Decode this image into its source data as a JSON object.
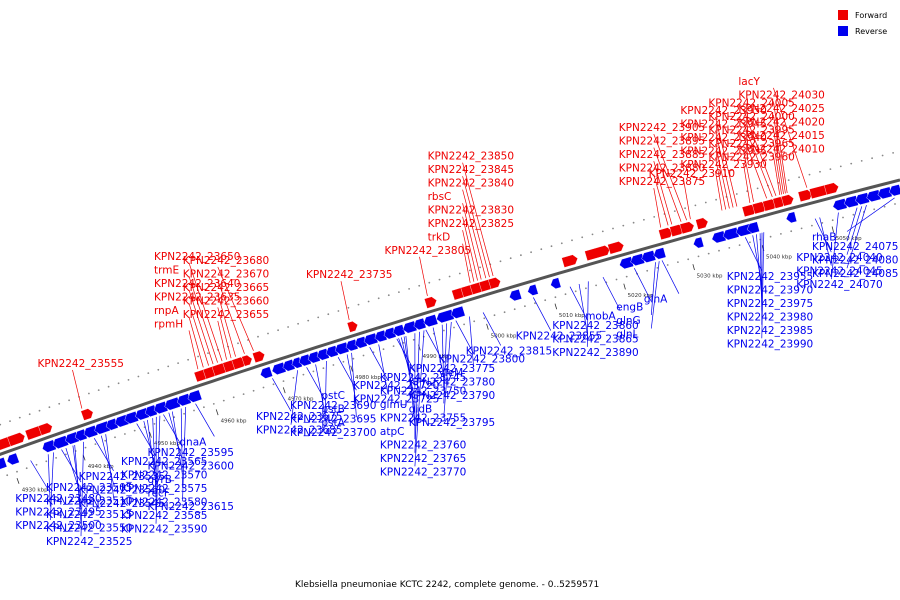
{
  "caption": "Klebsiella pneumoniae KCTC 2242, complete genome. - 0..5259571",
  "legend": [
    {
      "label": "Forward",
      "color": "#ee0000"
    },
    {
      "label": "Reverse",
      "color": "#0000ee"
    }
  ],
  "colors": {
    "forward": "#ee0000",
    "reverse": "#0000ee",
    "backbone": "#555555"
  },
  "scale_labels": [
    "4930 kbp",
    "4940 kbp",
    "4950 kbp",
    "4960 kbp",
    "4970 kbp",
    "4980 kbp",
    "4990 kbp",
    "5000 kbp",
    "5010 kbp",
    "5020 kbp",
    "5030 kbp",
    "5040 kbp",
    "5050 kbp",
    "5060 kbp"
  ],
  "genes_forward": [
    {
      "t": 0.01,
      "w": 0.018
    },
    {
      "t": 0.025,
      "w": 0.014
    },
    {
      "t": 0.045,
      "w": 0.016
    },
    {
      "t": 0.06,
      "w": 0.01
    },
    {
      "t": 0.108,
      "w": 0.008
    },
    {
      "t": 0.235,
      "w": 0.01
    },
    {
      "t": 0.245,
      "w": 0.01
    },
    {
      "t": 0.255,
      "w": 0.012
    },
    {
      "t": 0.267,
      "w": 0.01
    },
    {
      "t": 0.277,
      "w": 0.01
    },
    {
      "t": 0.288,
      "w": 0.006
    },
    {
      "t": 0.3,
      "w": 0.008
    },
    {
      "t": 0.405,
      "w": 0.006
    },
    {
      "t": 0.49,
      "w": 0.008
    },
    {
      "t": 0.52,
      "w": 0.01
    },
    {
      "t": 0.53,
      "w": 0.01
    },
    {
      "t": 0.54,
      "w": 0.01
    },
    {
      "t": 0.55,
      "w": 0.01
    },
    {
      "t": 0.56,
      "w": 0.008
    },
    {
      "t": 0.64,
      "w": 0.012
    },
    {
      "t": 0.665,
      "w": 0.022
    },
    {
      "t": 0.69,
      "w": 0.012
    },
    {
      "t": 0.745,
      "w": 0.01
    },
    {
      "t": 0.757,
      "w": 0.01
    },
    {
      "t": 0.768,
      "w": 0.01
    },
    {
      "t": 0.785,
      "w": 0.008
    },
    {
      "t": 0.835,
      "w": 0.01
    },
    {
      "t": 0.846,
      "w": 0.01
    },
    {
      "t": 0.857,
      "w": 0.01
    },
    {
      "t": 0.868,
      "w": 0.008
    },
    {
      "t": 0.877,
      "w": 0.008
    },
    {
      "t": 0.895,
      "w": 0.01
    },
    {
      "t": 0.907,
      "w": 0.016
    },
    {
      "t": 0.923,
      "w": 0.01
    }
  ],
  "genes_reverse": [
    {
      "t": 0.004,
      "w": 0.01
    },
    {
      "t": 0.02,
      "w": 0.008
    },
    {
      "t": 0.06,
      "w": 0.01
    },
    {
      "t": 0.072,
      "w": 0.012
    },
    {
      "t": 0.086,
      "w": 0.01
    },
    {
      "t": 0.097,
      "w": 0.008
    },
    {
      "t": 0.107,
      "w": 0.01
    },
    {
      "t": 0.119,
      "w": 0.012
    },
    {
      "t": 0.132,
      "w": 0.008
    },
    {
      "t": 0.142,
      "w": 0.01
    },
    {
      "t": 0.153,
      "w": 0.01
    },
    {
      "t": 0.165,
      "w": 0.01
    },
    {
      "t": 0.176,
      "w": 0.008
    },
    {
      "t": 0.186,
      "w": 0.01
    },
    {
      "t": 0.198,
      "w": 0.012
    },
    {
      "t": 0.212,
      "w": 0.01
    },
    {
      "t": 0.224,
      "w": 0.01
    },
    {
      "t": 0.305,
      "w": 0.008
    },
    {
      "t": 0.318,
      "w": 0.01
    },
    {
      "t": 0.33,
      "w": 0.008
    },
    {
      "t": 0.34,
      "w": 0.006
    },
    {
      "t": 0.348,
      "w": 0.008
    },
    {
      "t": 0.358,
      "w": 0.008
    },
    {
      "t": 0.368,
      "w": 0.008
    },
    {
      "t": 0.378,
      "w": 0.008
    },
    {
      "t": 0.388,
      "w": 0.01
    },
    {
      "t": 0.4,
      "w": 0.008
    },
    {
      "t": 0.41,
      "w": 0.008
    },
    {
      "t": 0.42,
      "w": 0.01
    },
    {
      "t": 0.432,
      "w": 0.008
    },
    {
      "t": 0.442,
      "w": 0.008
    },
    {
      "t": 0.452,
      "w": 0.008
    },
    {
      "t": 0.463,
      "w": 0.01
    },
    {
      "t": 0.475,
      "w": 0.008
    },
    {
      "t": 0.486,
      "w": 0.01
    },
    {
      "t": 0.5,
      "w": 0.014
    },
    {
      "t": 0.516,
      "w": 0.01
    },
    {
      "t": 0.58,
      "w": 0.008
    },
    {
      "t": 0.6,
      "w": 0.006
    },
    {
      "t": 0.625,
      "w": 0.006
    },
    {
      "t": 0.7,
      "w": 0.01
    },
    {
      "t": 0.712,
      "w": 0.01
    },
    {
      "t": 0.724,
      "w": 0.01
    },
    {
      "t": 0.737,
      "w": 0.008
    },
    {
      "t": 0.78,
      "w": 0.006
    },
    {
      "t": 0.8,
      "w": 0.01
    },
    {
      "t": 0.812,
      "w": 0.012
    },
    {
      "t": 0.826,
      "w": 0.012
    },
    {
      "t": 0.838,
      "w": 0.008
    },
    {
      "t": 0.88,
      "w": 0.006
    },
    {
      "t": 0.93,
      "w": 0.01
    },
    {
      "t": 0.942,
      "w": 0.01
    },
    {
      "t": 0.954,
      "w": 0.01
    },
    {
      "t": 0.966,
      "w": 0.01
    },
    {
      "t": 0.978,
      "w": 0.01
    },
    {
      "t": 0.99,
      "w": 0.008
    }
  ],
  "labels_forward": [
    {
      "text": "KPN2242_24025",
      "t": 0.882
    },
    {
      "text": "KPN2242_24020",
      "t": 0.88
    },
    {
      "text": "KPN2242_24000",
      "t": 0.868
    },
    {
      "text": "KPN2242_24015",
      "t": 0.878
    },
    {
      "text": "KPN2242_24010",
      "t": 0.876
    },
    {
      "text": "KPN2242_24005",
      "t": 0.872
    },
    {
      "text": "KPN2242_23995",
      "t": 0.862
    },
    {
      "text": "KPN2242_24030",
      "t": 0.884
    },
    {
      "text": "lacY",
      "t": 0.905
    },
    {
      "text": "KPN2242_23950",
      "t": 0.83
    },
    {
      "text": "KPN2242_23945",
      "t": 0.826
    },
    {
      "text": "KPN2242_23940",
      "t": 0.822
    },
    {
      "text": "KPN2242_23965",
      "t": 0.848
    },
    {
      "text": "KPN2242_23960",
      "t": 0.844
    },
    {
      "text": "KPN2242_23935",
      "t": 0.818
    },
    {
      "text": "KPN2242_23930",
      "t": 0.814
    },
    {
      "text": "KPN2242_23910",
      "t": 0.78
    },
    {
      "text": "KPN2242_23905",
      "t": 0.776
    },
    {
      "text": "KPN2242_23895",
      "t": 0.77
    },
    {
      "text": "KPN2242_23875",
      "t": 0.748
    },
    {
      "text": "KPN2242_23885",
      "t": 0.76
    },
    {
      "text": "KPN2242_23880",
      "t": 0.756
    },
    {
      "text": "KPN2242_23845",
      "t": 0.562
    },
    {
      "text": "KPN2242_23840",
      "t": 0.558
    },
    {
      "text": "rbsC",
      "t": 0.553
    },
    {
      "text": "KPN2242_23830",
      "t": 0.549
    },
    {
      "text": "KPN2242_23825",
      "t": 0.545
    },
    {
      "text": "trkD",
      "t": 0.541
    },
    {
      "text": "KPN2242_23850",
      "t": 0.566
    },
    {
      "text": "KPN2242_23805",
      "t": 0.494
    },
    {
      "text": "KPN2242_23735",
      "t": 0.408
    },
    {
      "text": "KPN2242_23680",
      "t": 0.302
    },
    {
      "text": "KPN2242_23670",
      "t": 0.292
    },
    {
      "text": "KPN2242_23665",
      "t": 0.282
    },
    {
      "text": "KPN2242_23660",
      "t": 0.277
    },
    {
      "text": "KPN2242_23655",
      "t": 0.272
    },
    {
      "text": "KPN2242_23650",
      "t": 0.267
    },
    {
      "text": "trmE",
      "t": 0.262
    },
    {
      "text": "KPN2242_23640",
      "t": 0.257
    },
    {
      "text": "KPN2242_23635",
      "t": 0.252
    },
    {
      "text": "rnpA",
      "t": 0.246
    },
    {
      "text": "rpmH",
      "t": 0.24
    },
    {
      "text": "KPN2242_23555",
      "t": 0.11
    }
  ],
  "labels_reverse": [
    {
      "text": "KPN2242_24085",
      "t": 0.96
    },
    {
      "text": "KPN2242_24080",
      "t": 0.955
    },
    {
      "text": "KPN2242_24075",
      "t": 0.95
    },
    {
      "text": "rhaB",
      "t": 0.99
    },
    {
      "text": "KPN2242_24070",
      "t": 0.93
    },
    {
      "text": "KPN2242_24040",
      "t": 0.905
    },
    {
      "text": "KPN2242_24045",
      "t": 0.91
    },
    {
      "text": "KPN2242_23990",
      "t": 0.85
    },
    {
      "text": "KPN2242_23970",
      "t": 0.838
    },
    {
      "text": "KPN2242_23955",
      "t": 0.83
    },
    {
      "text": "KPN2242_23975",
      "t": 0.842
    },
    {
      "text": "KPN2242_23980",
      "t": 0.846
    },
    {
      "text": "KPN2242_23985",
      "t": 0.848
    },
    {
      "text": "glnA",
      "t": 0.74
    },
    {
      "text": "glnG",
      "t": 0.733
    },
    {
      "text": "glnL",
      "t": 0.737
    },
    {
      "text": "KPN2242_23890",
      "t": 0.66
    },
    {
      "text": "KPN2242_23860",
      "t": 0.64
    },
    {
      "text": "KPN2242_23865",
      "t": 0.65
    },
    {
      "text": "engB",
      "t": 0.71
    },
    {
      "text": "mobA",
      "t": 0.676
    },
    {
      "text": "KPN2242_23815",
      "t": 0.545
    },
    {
      "text": "KPN2242_23855",
      "t": 0.6
    },
    {
      "text": "KPN2242_23795",
      "t": 0.51
    },
    {
      "text": "yieM",
      "t": 0.53
    },
    {
      "text": "KPN2242_23760",
      "t": 0.47
    },
    {
      "text": "KPN2242_23780",
      "t": 0.49
    },
    {
      "text": "gidB",
      "t": 0.505
    },
    {
      "text": "glmU",
      "t": 0.455
    },
    {
      "text": "atpC",
      "t": 0.46
    },
    {
      "text": "pstC",
      "t": 0.385
    },
    {
      "text": "pstB",
      "t": 0.395
    },
    {
      "text": "KPN2242_23745",
      "t": 0.45
    },
    {
      "text": "KPN2242_23750",
      "t": 0.452
    },
    {
      "text": "KPN2242_23755",
      "t": 0.458
    },
    {
      "text": "KPN2242_23765",
      "t": 0.475
    },
    {
      "text": "KPN2242_23770",
      "t": 0.48
    },
    {
      "text": "KPN2242_23775",
      "t": 0.482
    },
    {
      "text": "KPN2242_23790",
      "t": 0.5
    },
    {
      "text": "KPN2242_23800",
      "t": 0.515
    },
    {
      "text": "KPN2242_23685",
      "t": 0.34
    },
    {
      "text": "KPN2242_23675",
      "t": 0.312
    },
    {
      "text": "KPN2242_23690",
      "t": 0.35
    },
    {
      "text": "KPN2242_23695",
      "t": 0.36
    },
    {
      "text": "KPN2242_23700",
      "t": 0.372
    },
    {
      "text": "pstA",
      "t": 0.4
    },
    {
      "text": "KPN2242_23720",
      "t": 0.42
    },
    {
      "text": "KPN2242_23725",
      "t": 0.43
    },
    {
      "text": "dnaA",
      "t": 0.226
    },
    {
      "text": "recF",
      "t": 0.21
    },
    {
      "text": "gyrB",
      "t": 0.2
    },
    {
      "text": "KPN2242_23595",
      "t": 0.19
    },
    {
      "text": "KPN2242_23600",
      "t": 0.196
    },
    {
      "text": "KPN2242_23615",
      "t": 0.215
    },
    {
      "text": "KPN2242_23565",
      "t": 0.16
    },
    {
      "text": "KPN2242_23570",
      "t": 0.168
    },
    {
      "text": "KPN2242_23525",
      "t": 0.1
    },
    {
      "text": "KPN2242_23535",
      "t": 0.112
    },
    {
      "text": "KPN2242_23545",
      "t": 0.125
    },
    {
      "text": "KPN2242_23575",
      "t": 0.172
    },
    {
      "text": "KPN2242_23580",
      "t": 0.178
    },
    {
      "text": "KPN2242_23585",
      "t": 0.182
    },
    {
      "text": "KPN2242_23590",
      "t": 0.186
    },
    {
      "text": "KPN2242_23505",
      "t": 0.075
    },
    {
      "text": "KPN2242_23480",
      "t": 0.04
    },
    {
      "text": "KPN2242_23495",
      "t": 0.06
    },
    {
      "text": "KPN2242_23500",
      "t": 0.066
    },
    {
      "text": "KPN2242_23510",
      "t": 0.08
    },
    {
      "text": "KPN2242_23515",
      "t": 0.088
    },
    {
      "text": "KPN2242_23550",
      "t": 0.09
    },
    {
      "text": "KPN2242_23560",
      "t": 0.12
    }
  ]
}
